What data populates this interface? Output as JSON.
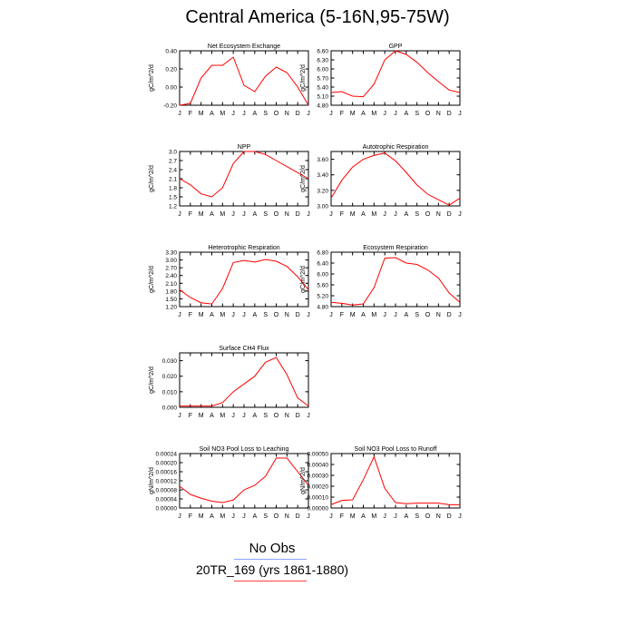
{
  "title": "Central America (5-16N,95-75W)",
  "legend": {
    "no_obs": "No Obs",
    "no_obs_color": "#8da0ff",
    "case_label": "20TR_169 (yrs 1861-1880)",
    "case_color": "#ff4040"
  },
  "line_color": "#ff0000",
  "chart_data": [
    {
      "type": "line",
      "title": "Net Ecosystem Exchange",
      "ylabel": "gC/m^2/d",
      "x": [
        "J",
        "F",
        "M",
        "A",
        "M",
        "J",
        "J",
        "A",
        "S",
        "O",
        "N",
        "D",
        "J"
      ],
      "values": [
        -0.2,
        -0.18,
        0.1,
        0.24,
        0.24,
        0.33,
        0.02,
        -0.05,
        0.12,
        0.22,
        0.16,
        0.0,
        -0.2
      ],
      "ylim": [
        -0.2,
        0.4
      ],
      "yticks": [
        -0.2,
        0.0,
        0.2,
        0.4
      ],
      "ytick_labels": [
        "-0.20",
        "0.00",
        "0.20",
        "0.40"
      ]
    },
    {
      "type": "line",
      "title": "GPP",
      "ylabel": "gC/m^2/d",
      "x": [
        "J",
        "F",
        "M",
        "A",
        "M",
        "J",
        "J",
        "A",
        "S",
        "O",
        "N",
        "D",
        "J"
      ],
      "values": [
        5.22,
        5.25,
        5.1,
        5.08,
        5.5,
        6.3,
        6.6,
        6.48,
        6.22,
        5.88,
        5.58,
        5.3,
        5.22
      ],
      "ylim": [
        4.8,
        6.6
      ],
      "yticks": [
        4.8,
        5.1,
        5.4,
        5.7,
        6.0,
        6.3,
        6.6
      ],
      "ytick_labels": [
        "4.80",
        "5.10",
        "5.40",
        "5.70",
        "6.00",
        "6.30",
        "6.60"
      ]
    },
    {
      "type": "line",
      "title": "NPP",
      "ylabel": "gC/m^2/d",
      "x": [
        "J",
        "F",
        "M",
        "A",
        "M",
        "J",
        "J",
        "A",
        "S",
        "O",
        "N",
        "D",
        "J"
      ],
      "values": [
        2.1,
        1.9,
        1.6,
        1.5,
        1.8,
        2.6,
        3.0,
        3.0,
        2.9,
        2.7,
        2.5,
        2.3,
        2.1
      ],
      "ylim": [
        1.2,
        3.0
      ],
      "yticks": [
        1.2,
        1.5,
        1.8,
        2.1,
        2.4,
        2.7,
        3.0
      ],
      "ytick_labels": [
        "1.2",
        "1.5",
        "1.8",
        "2.1",
        "2.4",
        "2.7",
        "3.0"
      ]
    },
    {
      "type": "line",
      "title": "Autotrophic Respiration",
      "ylabel": "gC/m^2/d",
      "x": [
        "J",
        "F",
        "M",
        "A",
        "M",
        "J",
        "J",
        "A",
        "S",
        "O",
        "N",
        "D",
        "J"
      ],
      "values": [
        3.1,
        3.33,
        3.5,
        3.6,
        3.65,
        3.68,
        3.58,
        3.43,
        3.27,
        3.15,
        3.08,
        3.01,
        3.1
      ],
      "ylim": [
        3.0,
        3.7
      ],
      "yticks": [
        3.0,
        3.2,
        3.4,
        3.6
      ],
      "ytick_labels": [
        "3.00",
        "3.20",
        "3.40",
        "3.60"
      ]
    },
    {
      "type": "line",
      "title": "Heterotrophic Respiration",
      "ylabel": "gC/m^2/d",
      "x": [
        "J",
        "F",
        "M",
        "A",
        "M",
        "J",
        "J",
        "A",
        "S",
        "O",
        "N",
        "D",
        "J"
      ],
      "values": [
        1.85,
        1.55,
        1.35,
        1.3,
        1.9,
        2.9,
        2.98,
        2.92,
        3.02,
        2.95,
        2.75,
        2.35,
        1.85
      ],
      "ylim": [
        1.2,
        3.3
      ],
      "yticks": [
        1.2,
        1.5,
        1.8,
        2.1,
        2.4,
        2.7,
        3.0,
        3.3
      ],
      "ytick_labels": [
        "1.20",
        "1.50",
        "1.80",
        "2.10",
        "2.40",
        "2.70",
        "3.00",
        "3.30"
      ]
    },
    {
      "type": "line",
      "title": "Ecosystem Respiration",
      "ylabel": "gC/m^2/d",
      "x": [
        "J",
        "F",
        "M",
        "A",
        "M",
        "J",
        "J",
        "A",
        "S",
        "O",
        "N",
        "D",
        "J"
      ],
      "values": [
        4.96,
        4.92,
        4.86,
        4.9,
        5.5,
        6.58,
        6.6,
        6.4,
        6.35,
        6.15,
        5.85,
        5.3,
        4.96
      ],
      "ylim": [
        4.8,
        6.8
      ],
      "yticks": [
        4.8,
        5.2,
        5.6,
        6.0,
        6.4,
        6.8
      ],
      "ytick_labels": [
        "4.80",
        "5.20",
        "5.60",
        "6.00",
        "6.40",
        "6.80"
      ]
    },
    {
      "type": "line",
      "title": "Surface CH4 Flux",
      "ylabel": "gC/m^2/d",
      "x": [
        "J",
        "F",
        "M",
        "A",
        "M",
        "J",
        "J",
        "A",
        "S",
        "O",
        "N",
        "D",
        "J"
      ],
      "values": [
        0.0008,
        0.0008,
        0.0008,
        0.0008,
        0.003,
        0.01,
        0.015,
        0.02,
        0.029,
        0.032,
        0.021,
        0.006,
        0.0008
      ],
      "ylim": [
        0.0,
        0.035
      ],
      "yticks": [
        0.0,
        0.01,
        0.02,
        0.03
      ],
      "ytick_labels": [
        "0.000",
        "0.010",
        "0.020",
        "0.030"
      ]
    },
    null,
    {
      "type": "line",
      "title": "Soil NO3 Pool Loss to Leaching",
      "ylabel": "gN/m^2/d",
      "x": [
        "J",
        "F",
        "M",
        "A",
        "M",
        "J",
        "J",
        "A",
        "S",
        "O",
        "N",
        "D",
        "J"
      ],
      "values": [
        9.6e-05,
        6e-05,
        4.3e-05,
        3e-05,
        2.4e-05,
        3.5e-05,
        8e-05,
        0.0001,
        0.00014,
        0.00022,
        0.00022,
        0.00016,
        0.0001
      ],
      "ylim": [
        0.0,
        0.00024
      ],
      "yticks": [
        0.0,
        4e-05,
        8e-05,
        0.00012,
        0.00016,
        0.0002,
        0.00024
      ],
      "ytick_labels": [
        "0.00000",
        "0.00004",
        "0.00008",
        "0.00012",
        "0.00016",
        "0.00020",
        "0.00024"
      ]
    },
    {
      "type": "line",
      "title": "Soil NO3 Pool Loss to Runoff",
      "ylabel": "gN/m^2/d",
      "x": [
        "J",
        "F",
        "M",
        "A",
        "M",
        "J",
        "J",
        "A",
        "S",
        "O",
        "N",
        "D",
        "J"
      ],
      "values": [
        3e-05,
        7e-05,
        7.5e-05,
        0.00026,
        0.00047,
        0.00018,
        5e-05,
        4e-05,
        4.5e-05,
        4.5e-05,
        4.5e-05,
        3e-05,
        3e-05
      ],
      "ylim": [
        0.0,
        0.0005
      ],
      "yticks": [
        0.0,
        0.0001,
        0.0002,
        0.0003,
        0.0004,
        0.0005
      ],
      "ytick_labels": [
        "0.00000",
        "0.00010",
        "0.00020",
        "0.00030",
        "0.00040",
        "0.00050"
      ]
    }
  ]
}
